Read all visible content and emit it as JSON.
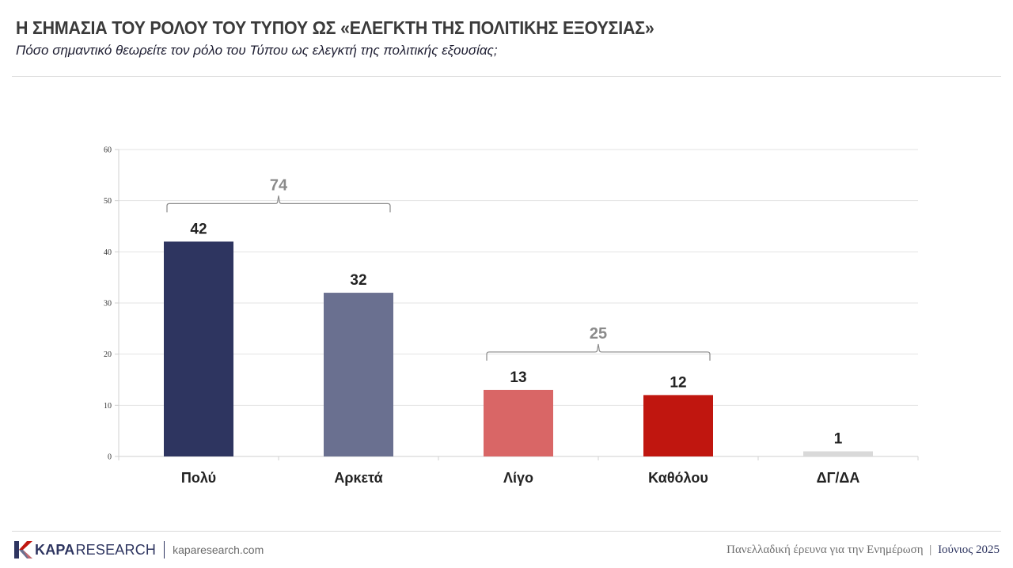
{
  "header": {
    "title": "Η ΣΗΜΑΣΙΑ ΤΟΥ ΡΟΛΟΥ ΤΟΥ ΤΥΠΟΥ ΩΣ «ΕΛΕΓΚΤΗ ΤΗΣ ΠΟΛΙΤΙΚΗΣ ΕΞΟΥΣΙΑΣ»",
    "subtitle": "Πόσο σημαντικό θεωρείτε τον ρόλο του Τύπου ως ελεγκτή της πολιτικής εξουσίας;"
  },
  "chart_data": {
    "type": "bar",
    "categories": [
      "Πολύ",
      "Αρκετά",
      "Λίγο",
      "Καθόλου",
      "ΔΓ/ΔΑ"
    ],
    "values": [
      42,
      32,
      13,
      12,
      1
    ],
    "colors": [
      "#2e3560",
      "#6a7090",
      "#d96666",
      "#c0160f",
      "#d9d9d9"
    ],
    "ylim": [
      0,
      60
    ],
    "yticks": [
      0,
      10,
      20,
      30,
      40,
      50,
      60
    ],
    "grid": true,
    "xlabel": "",
    "ylabel": "",
    "groups": [
      {
        "label": "74",
        "from": 0,
        "to": 1
      },
      {
        "label": "25",
        "from": 2,
        "to": 3
      }
    ]
  },
  "footer": {
    "brand_bold": "KAPA",
    "brand_light": "RESEARCH",
    "url": "kaparesearch.com",
    "survey": "Πανελλαδική έρευνα για την Ενημέρωση",
    "separator": "|",
    "date": "Ιούνιος 2025"
  }
}
